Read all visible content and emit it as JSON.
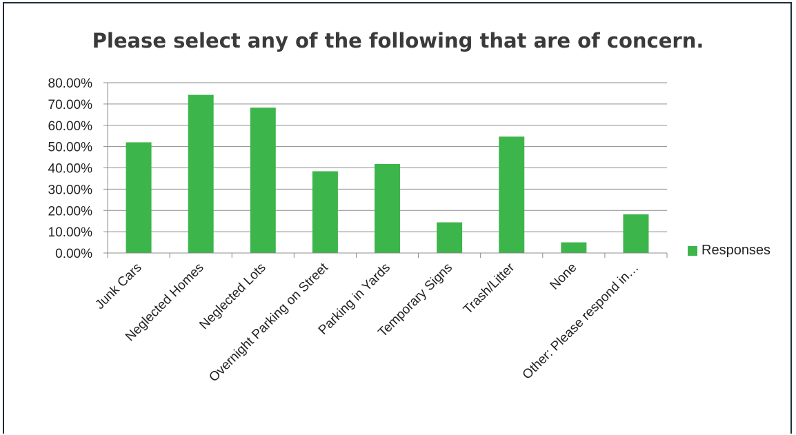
{
  "chart_data": {
    "type": "bar",
    "title": "Please select any of the following that are of concern.",
    "categories": [
      "Junk Cars",
      "Neglected Homes",
      "Neglected Lots",
      "Overnight Parking on Street",
      "Parking in Yards",
      "Temporary Signs",
      "Trash/Litter",
      "None",
      "Other: Please respond in…"
    ],
    "series": [
      {
        "name": "Responses",
        "values": [
          52.0,
          74.3,
          68.3,
          38.4,
          41.8,
          14.4,
          54.7,
          5.0,
          18.2
        ]
      }
    ],
    "yticks": [
      "0.00%",
      "10.00%",
      "20.00%",
      "30.00%",
      "40.00%",
      "50.00%",
      "60.00%",
      "70.00%",
      "80.00%"
    ],
    "ylim": [
      0,
      80
    ],
    "grid": true,
    "legend_position": "right",
    "bar_color": "#3cb54a"
  }
}
